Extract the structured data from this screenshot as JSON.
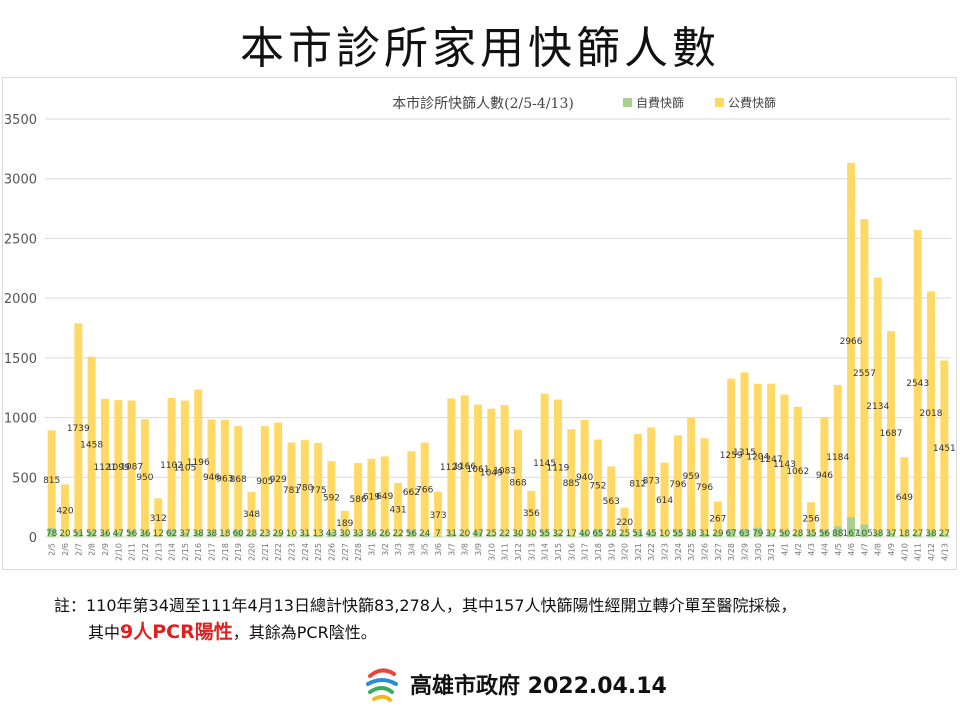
{
  "page": {
    "title": "本市診所家用快篩人數"
  },
  "note": {
    "line1": "註：110年第34週至111年4月13日總計快篩83,278人，其中157人快篩陽性經開立轉介單至醫院採檢，",
    "line2_pre": "其中",
    "line2_red": "9人PCR陽性",
    "line2_post": "，其餘為PCR陰性。"
  },
  "footer": {
    "brand": "高雄市政府 2022.04.14",
    "logo_icon": "kaohsiung-city-logo-icon"
  },
  "chart_data": {
    "type": "bar",
    "stacked": true,
    "title": "本市診所快篩人數(2/5-4/13)",
    "legend_position": "top-right",
    "ylim": [
      0,
      3500
    ],
    "yticks": [
      0,
      500,
      1000,
      1500,
      2000,
      2500,
      3000,
      3500
    ],
    "grid": true,
    "categories": [
      "2/5",
      "2/6",
      "2/7",
      "2/8",
      "2/9",
      "2/10",
      "2/11",
      "2/12",
      "2/13",
      "2/14",
      "2/15",
      "2/16",
      "2/17",
      "2/18",
      "2/19",
      "2/20",
      "2/21",
      "2/22",
      "2/23",
      "2/24",
      "2/25",
      "2/26",
      "2/27",
      "2/28",
      "3/1",
      "3/2",
      "3/3",
      "3/4",
      "3/5",
      "3/6",
      "3/7",
      "3/8",
      "3/9",
      "3/10",
      "3/11",
      "3/12",
      "3/13",
      "3/14",
      "3/15",
      "3/16",
      "3/17",
      "3/18",
      "3/19",
      "3/20",
      "3/21",
      "3/22",
      "3/23",
      "3/24",
      "3/25",
      "3/26",
      "3/27",
      "3/28",
      "3/29",
      "3/30",
      "3/31",
      "4/1",
      "4/2",
      "4/3",
      "4/4",
      "4/5",
      "4/6",
      "4/7",
      "4/8",
      "4/9",
      "4/10",
      "4/11",
      "4/12",
      "4/13"
    ],
    "series": [
      {
        "name": "自費快篩",
        "color": "#a9d18e",
        "values": [
          78,
          20,
          51,
          52,
          36,
          47,
          56,
          36,
          12,
          62,
          37,
          38,
          38,
          18,
          60,
          28,
          23,
          29,
          10,
          31,
          13,
          43,
          30,
          33,
          36,
          26,
          22,
          56,
          24,
          7,
          31,
          20,
          47,
          25,
          22,
          30,
          30,
          55,
          32,
          17,
          40,
          65,
          28,
          25,
          51,
          45,
          10,
          55,
          38,
          31,
          29,
          67,
          63,
          79,
          37,
          50,
          28,
          35,
          56,
          88,
          167,
          105,
          38,
          37,
          18,
          27,
          38,
          27
        ]
      },
      {
        "name": "公費快篩",
        "color": "#ffd966",
        "values": [
          815,
          420,
          1739,
          1458,
          1121,
          1099,
          1087,
          950,
          312,
          1102,
          1105,
          1196,
          946,
          963,
          868,
          348,
          905,
          929,
          781,
          780,
          775,
          592,
          189,
          586,
          619,
          649,
          431,
          662,
          766,
          373,
          1129,
          1166,
          1061,
          1049,
          1083,
          868,
          356,
          1145,
          1119,
          885,
          940,
          752,
          563,
          220,
          812,
          873,
          614,
          796,
          959,
          796,
          267,
          1259,
          1315,
          1204,
          1247,
          1143,
          1062,
          256,
          946,
          1184,
          2966,
          2557,
          2134,
          1687,
          649,
          2543,
          2018,
          1451
        ]
      }
    ]
  }
}
